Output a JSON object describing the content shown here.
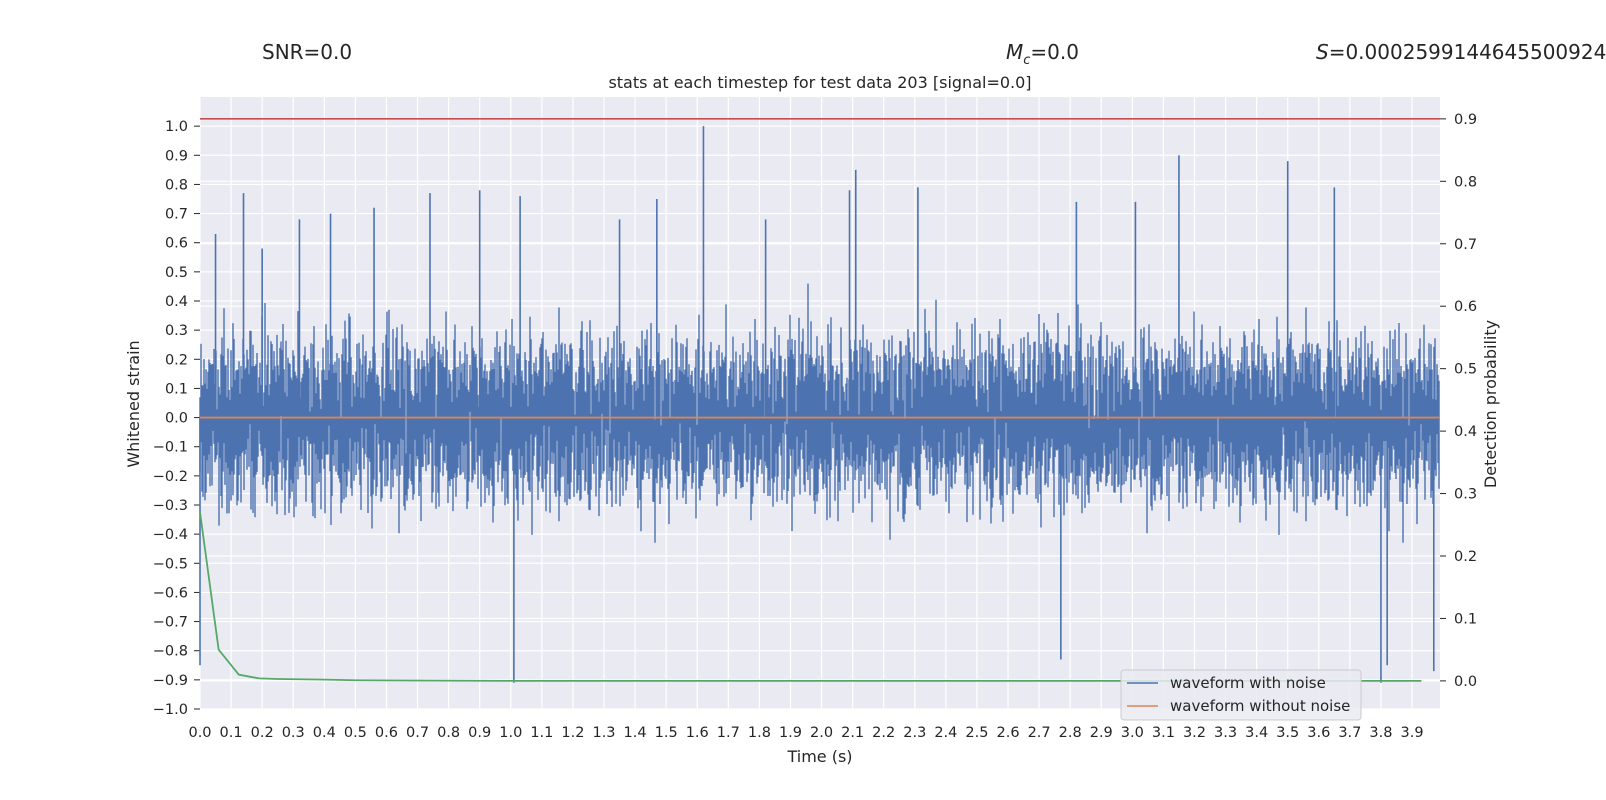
{
  "header": {
    "snr_text": "SNR=0.0",
    "mc_symbol": "M",
    "mc_sub": "c",
    "mc_value": "=0.0",
    "s_symbol": "S",
    "s_value": "=0.0002599144645500924"
  },
  "chart_data": {
    "type": "line",
    "title": "stats at each timestep for test data 203 [signal=0.0]",
    "xlabel": "Time (s)",
    "ylabel": "Whitened strain",
    "y2label": "Detection probability",
    "xlim": [
      0.0,
      3.99
    ],
    "ylim": [
      -1.0,
      1.1
    ],
    "y2lim": [
      -0.045,
      0.935
    ],
    "xticks": [
      "0.0",
      "0.1",
      "0.2",
      "0.3",
      "0.4",
      "0.5",
      "0.6",
      "0.7",
      "0.8",
      "0.9",
      "1.0",
      "1.1",
      "1.2",
      "1.3",
      "1.4",
      "1.5",
      "1.6",
      "1.7",
      "1.8",
      "1.9",
      "2.0",
      "2.1",
      "2.2",
      "2.3",
      "2.4",
      "2.5",
      "2.6",
      "2.7",
      "2.8",
      "2.9",
      "3.0",
      "3.1",
      "3.2",
      "3.3",
      "3.4",
      "3.5",
      "3.6",
      "3.7",
      "3.8",
      "3.9"
    ],
    "yticks": [
      "−1.0",
      "−0.9",
      "−0.8",
      "−0.7",
      "−0.6",
      "−0.5",
      "−0.4",
      "−0.3",
      "−0.2",
      "−0.1",
      "0.0",
      "0.1",
      "0.2",
      "0.3",
      "0.4",
      "0.5",
      "0.6",
      "0.7",
      "0.8",
      "0.9",
      "1.0"
    ],
    "y2ticks": [
      "0.0",
      "0.1",
      "0.2",
      "0.3",
      "0.4",
      "0.5",
      "0.6",
      "0.7",
      "0.8",
      "0.9"
    ],
    "grid": true,
    "legend_position": "lower-right",
    "series": [
      {
        "name": "waveform with noise",
        "color": "#4c72b0",
        "axis": "left",
        "sample_rate": 2048,
        "amplitude_envelope": [
          -0.91,
          1.0
        ],
        "peaks": [
          {
            "x": 0.05,
            "y": 0.63
          },
          {
            "x": 0.14,
            "y": 0.77
          },
          {
            "x": 0.2,
            "y": 0.58
          },
          {
            "x": 0.32,
            "y": 0.68
          },
          {
            "x": 0.42,
            "y": 0.7
          },
          {
            "x": 0.56,
            "y": 0.72
          },
          {
            "x": 0.74,
            "y": 0.77
          },
          {
            "x": 0.9,
            "y": 0.78
          },
          {
            "x": 1.03,
            "y": 0.76
          },
          {
            "x": 1.35,
            "y": 0.68
          },
          {
            "x": 1.47,
            "y": 0.75
          },
          {
            "x": 1.62,
            "y": 1.0
          },
          {
            "x": 1.82,
            "y": 0.68
          },
          {
            "x": 2.09,
            "y": 0.78
          },
          {
            "x": 2.11,
            "y": 0.85
          },
          {
            "x": 2.31,
            "y": 0.79
          },
          {
            "x": 2.82,
            "y": 0.74
          },
          {
            "x": 3.01,
            "y": 0.74
          },
          {
            "x": 3.15,
            "y": 0.9
          },
          {
            "x": 3.5,
            "y": 0.88
          },
          {
            "x": 3.65,
            "y": 0.79
          },
          {
            "x": 0.0,
            "y": -0.85
          },
          {
            "x": 1.01,
            "y": -0.91
          },
          {
            "x": 2.77,
            "y": -0.83
          },
          {
            "x": 3.8,
            "y": -0.91
          },
          {
            "x": 3.82,
            "y": -0.85
          },
          {
            "x": 3.97,
            "y": -0.87
          }
        ]
      },
      {
        "name": "waveform without noise",
        "color": "#dd8452",
        "axis": "left",
        "x": [
          0.0,
          3.99
        ],
        "y": [
          0.0,
          0.0
        ]
      },
      {
        "color": "#55a868",
        "axis": "right",
        "x": [
          0.0,
          0.06,
          0.125,
          0.19,
          0.25,
          0.4,
          0.5,
          1.0,
          2.0,
          3.0,
          3.93
        ],
        "y": [
          0.27,
          0.05,
          0.01,
          0.004,
          0.003,
          0.002,
          0.001,
          0.0,
          0.0,
          0.0,
          0.0
        ]
      },
      {
        "color": "#c44e52",
        "axis": "right",
        "x": [
          0.0,
          3.99
        ],
        "y": [
          0.9,
          0.9
        ]
      }
    ]
  }
}
